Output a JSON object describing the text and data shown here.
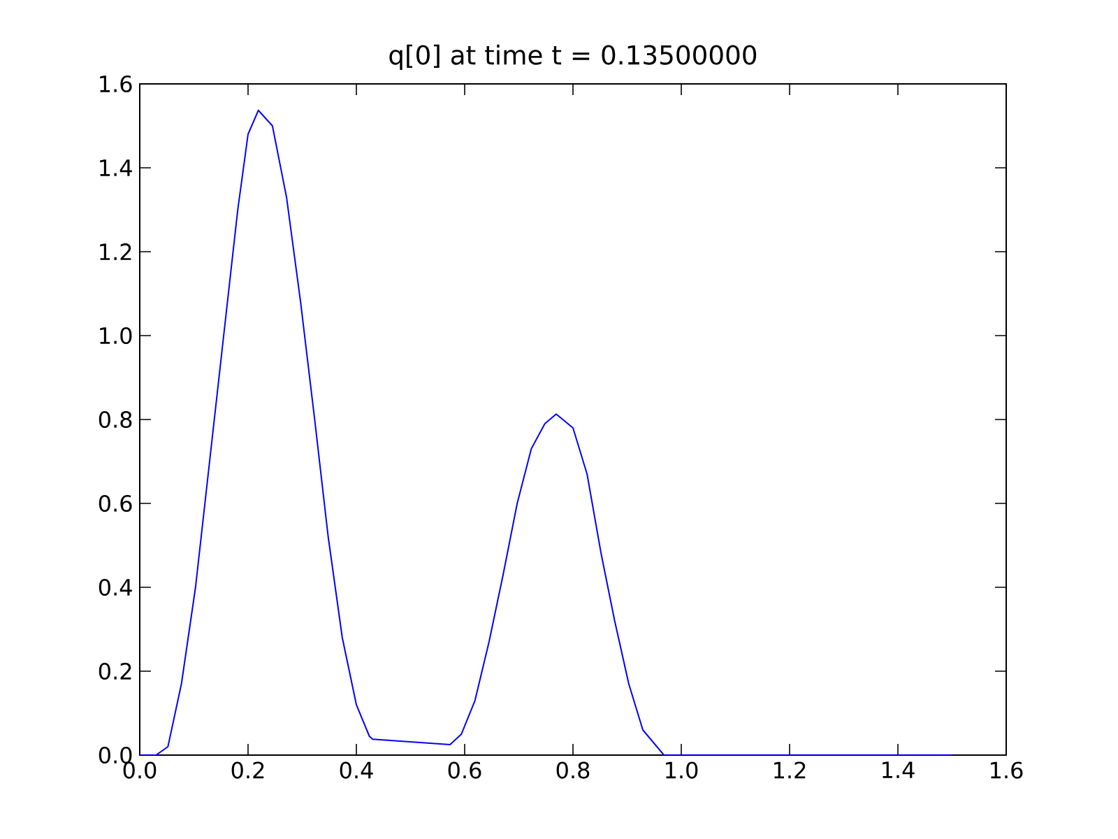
{
  "chart_data": {
    "type": "line",
    "title": "q[0] at time t = 0.13500000",
    "x": [
      0.0,
      0.03,
      0.052,
      0.077,
      0.103,
      0.129,
      0.155,
      0.181,
      0.2,
      0.219,
      0.245,
      0.271,
      0.297,
      0.323,
      0.348,
      0.374,
      0.4,
      0.424,
      0.43,
      0.573,
      0.594,
      0.619,
      0.645,
      0.671,
      0.697,
      0.723,
      0.748,
      0.769,
      0.8,
      0.826,
      0.852,
      0.877,
      0.903,
      0.929,
      0.968,
      1.5
    ],
    "series": [
      {
        "color": "#0000ff",
        "values": [
          0.0,
          0.0,
          0.02,
          0.17,
          0.4,
          0.7,
          1.0,
          1.3,
          1.48,
          1.537,
          1.5,
          1.33,
          1.08,
          0.8,
          0.52,
          0.28,
          0.12,
          0.045,
          0.038,
          0.025,
          0.05,
          0.13,
          0.27,
          0.43,
          0.6,
          0.73,
          0.79,
          0.813,
          0.78,
          0.67,
          0.48,
          0.32,
          0.17,
          0.06,
          0.0,
          0.0
        ]
      }
    ],
    "xlim": [
      0.0,
      1.6
    ],
    "ylim": [
      0.0,
      1.6
    ],
    "xticks": [
      {
        "value": 0.0,
        "label": "0.0"
      },
      {
        "value": 0.2,
        "label": "0.2"
      },
      {
        "value": 0.4,
        "label": "0.4"
      },
      {
        "value": 0.6,
        "label": "0.6"
      },
      {
        "value": 0.8,
        "label": "0.8"
      },
      {
        "value": 1.0,
        "label": "1.0"
      },
      {
        "value": 1.2,
        "label": "1.2"
      },
      {
        "value": 1.4,
        "label": "1.4"
      },
      {
        "value": 1.6,
        "label": "1.6"
      }
    ],
    "yticks": [
      {
        "value": 0.0,
        "label": "0.0"
      },
      {
        "value": 0.2,
        "label": "0.2"
      },
      {
        "value": 0.4,
        "label": "0.4"
      },
      {
        "value": 0.6,
        "label": "0.6"
      },
      {
        "value": 0.8,
        "label": "0.8"
      },
      {
        "value": 1.0,
        "label": "1.0"
      },
      {
        "value": 1.2,
        "label": "1.2"
      },
      {
        "value": 1.4,
        "label": "1.4"
      },
      {
        "value": 1.6,
        "label": "1.6"
      }
    ],
    "grid": false,
    "marker": "none",
    "line_style": "solid"
  }
}
